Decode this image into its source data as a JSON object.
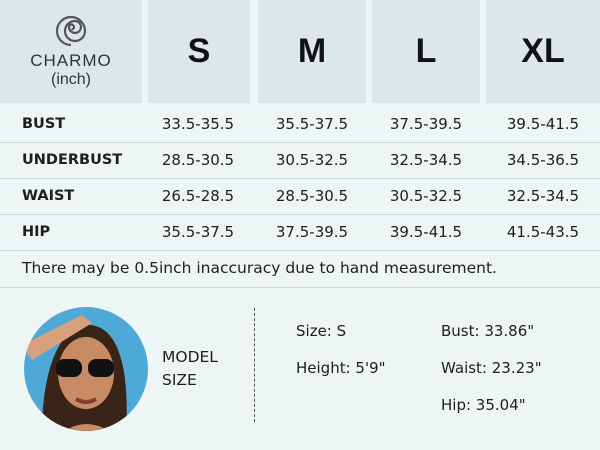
{
  "brand": {
    "name": "CHARMO",
    "unit": "(inch)"
  },
  "table": {
    "columns": [
      "S",
      "M",
      "L",
      "XL"
    ],
    "rows": [
      {
        "label": "BUST",
        "values": [
          "33.5-35.5",
          "35.5-37.5",
          "37.5-39.5",
          "39.5-41.5"
        ]
      },
      {
        "label": "UNDERBUST",
        "values": [
          "28.5-30.5",
          "30.5-32.5",
          "32.5-34.5",
          "34.5-36.5"
        ]
      },
      {
        "label": "WAIST",
        "values": [
          "26.5-28.5",
          "28.5-30.5",
          "30.5-32.5",
          "32.5-34.5"
        ]
      },
      {
        "label": "HIP",
        "values": [
          "35.5-37.5",
          "37.5-39.5",
          "39.5-41.5",
          "41.5-43.5"
        ]
      }
    ]
  },
  "note": "There may be 0.5inch inaccuracy due to hand measurement.",
  "model": {
    "heading": [
      "MODEL",
      "SIZE"
    ],
    "details": [
      "Size: S",
      "Height: 5'9\"",
      "Bust: 33.86\"",
      "Waist: 23.23\"",
      "Hip: 35.04\""
    ]
  }
}
